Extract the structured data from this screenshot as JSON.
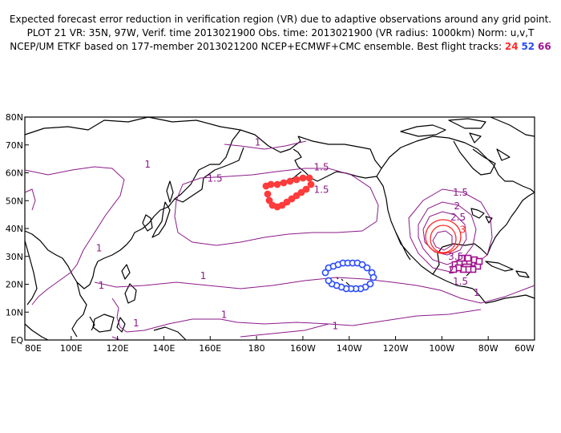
{
  "header": {
    "line1": "Expected forecast error reduction in verification region (VR) due to adaptive observations around any grid point.",
    "line2": "PLOT 21 VR: 35N, 97W, Verif. time 2013021900 Obs. time: 2013021900 (VR radius: 1000km) Norm: u,v,T",
    "line3_prefix": "NCEP/UM ETKF based on 177-member 2013021200 NCEP+ECMWF+CMC ensemble. Best flight tracks:",
    "track_24": "24",
    "track_52": "52",
    "track_66": "66"
  },
  "map": {
    "lat_labels": [
      "EQ",
      "10N",
      "20N",
      "30N",
      "40N",
      "50N",
      "60N",
      "70N",
      "80N"
    ],
    "lon_labels": [
      "80E",
      "100E",
      "120E",
      "140E",
      "160E",
      "180",
      "160W",
      "140W",
      "120W",
      "100W",
      "80W",
      "60W"
    ],
    "contour_labels": [
      {
        "text": "1",
        "color": "#8b1a89",
        "lon": 112.0,
        "lat": 33.0
      },
      {
        "text": "1",
        "color": "#8b1a89",
        "lon": 113.0,
        "lat": 19.5
      },
      {
        "text": "1",
        "color": "#8b1a89",
        "lon": 133.0,
        "lat": 63.0
      },
      {
        "text": "1",
        "color": "#8b1a89",
        "lon": 157.0,
        "lat": 23.0
      },
      {
        "text": "1",
        "color": "#8b1a89",
        "lon": 180.5,
        "lat": 71.0
      },
      {
        "text": "1",
        "color": "#8b1a89",
        "lon": 166.0,
        "lat": 9.0
      },
      {
        "text": "1",
        "color": "#8b1a89",
        "lon": 128.0,
        "lat": 6.0
      },
      {
        "text": "1",
        "color": "#8b1a89",
        "lon": 214.0,
        "lat": 5.0
      },
      {
        "text": "1",
        "color": "#8b1a89",
        "lon": 275.0,
        "lat": 17.0
      },
      {
        "text": "1.5",
        "color": "#8b1a89",
        "lon": 162.0,
        "lat": 58.0
      },
      {
        "text": "1.5",
        "color": "#8b1a89",
        "lon": 208.0,
        "lat": 62.0
      },
      {
        "text": "1.5",
        "color": "#8b1a89",
        "lon": 208.0,
        "lat": 54.0
      },
      {
        "text": "1.5",
        "color": "#8b1a89",
        "lon": 268.0,
        "lat": 53.0
      },
      {
        "text": "1.5",
        "color": "#8b1a89",
        "lon": 268.0,
        "lat": 21.0
      },
      {
        "text": "2",
        "color": "#8b1a89",
        "lon": 266.5,
        "lat": 48.0
      },
      {
        "text": "2",
        "color": "#8b1a89",
        "lon": 264.0,
        "lat": 25.0
      },
      {
        "text": "2.5",
        "color": "#8b1a89",
        "lon": 267.0,
        "lat": 44.0
      },
      {
        "text": "3",
        "color": "#ff2a2a",
        "lon": 269.0,
        "lat": 39.5
      },
      {
        "text": "3.5",
        "color": "#8b1a89",
        "lon": 266.0,
        "lat": 30.0
      }
    ],
    "colors": {
      "coast": "#000000",
      "contour": "#8b1a89",
      "contour_high": "#ff2a2a",
      "track_24": "#ff3b3b",
      "track_52": "#2a4bff",
      "track_66": "#a0138c"
    }
  }
}
